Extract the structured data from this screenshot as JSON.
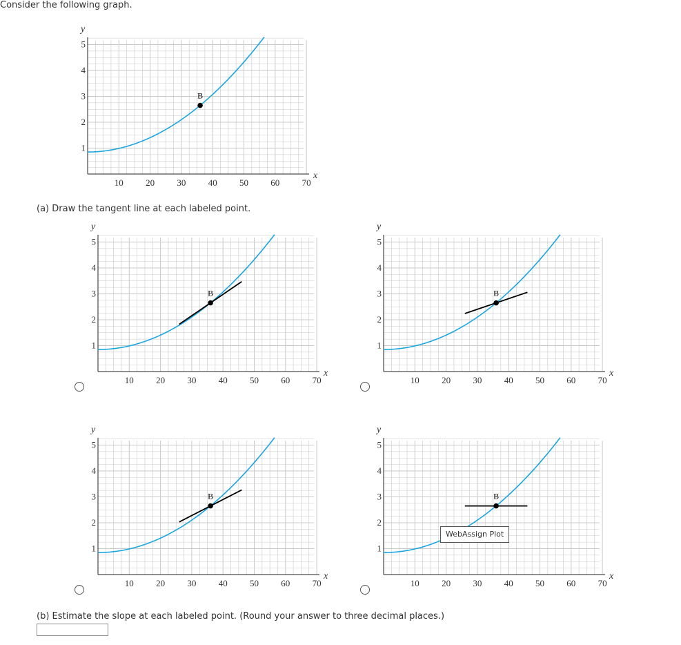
{
  "prompt": "Consider the following graph.",
  "part_a": "(a) Draw the tangent line at each labeled point.",
  "part_b": "(b) Estimate the slope at each labeled point. (Round your answer to three decimal places.)",
  "answer": {
    "value": ""
  },
  "tooltip": "WebAssign Plot",
  "axes": {
    "x_label": "x",
    "y_label": "y",
    "x_ticks": [
      "10",
      "20",
      "30",
      "40",
      "50",
      "60",
      "70"
    ],
    "y_ticks": [
      "1",
      "2",
      "3",
      "4",
      "5"
    ],
    "x_range": [
      0,
      72
    ],
    "y_range": [
      0,
      5.3
    ]
  },
  "point_label": "B",
  "colors": {
    "curve": "#1aa6e0",
    "tangent": "#000000",
    "grid": "#c8c8c8"
  },
  "chart_data": [
    {
      "type": "line",
      "role": "given-graph",
      "point": {
        "label": "B",
        "x": 36,
        "y": 2.65
      }
    },
    {
      "type": "line",
      "role": "option-1",
      "point": {
        "label": "B",
        "x": 36,
        "y": 2.65
      },
      "tangent_slope": 0.0822,
      "selected": false
    },
    {
      "type": "line",
      "role": "option-2",
      "point": {
        "label": "B",
        "x": 36,
        "y": 2.65
      },
      "tangent_slope": 0.0411,
      "selected": false
    },
    {
      "type": "line",
      "role": "option-3",
      "point": {
        "label": "B",
        "x": 36,
        "y": 2.65
      },
      "tangent_slope": 0.0617,
      "selected": false
    },
    {
      "type": "line",
      "role": "option-4",
      "point": {
        "label": "B",
        "x": 36,
        "y": 2.65
      },
      "tangent_slope": 0,
      "selected": false
    }
  ]
}
